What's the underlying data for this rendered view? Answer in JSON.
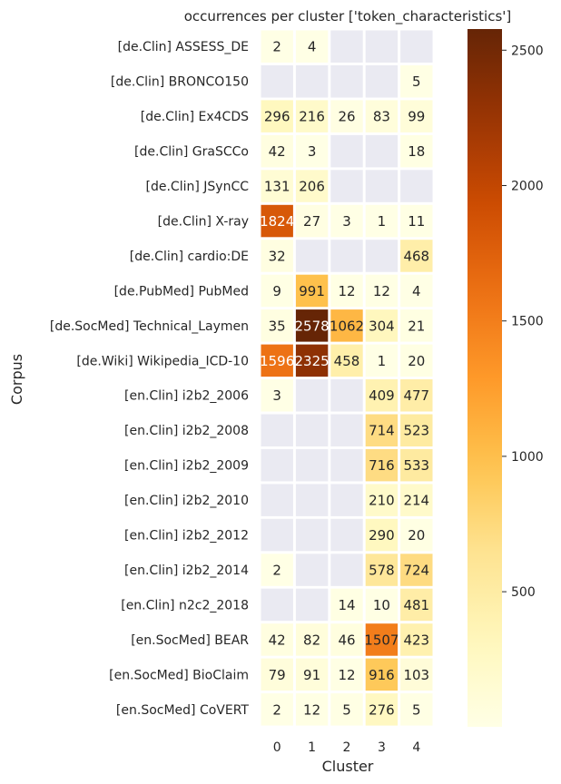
{
  "chart_data": {
    "type": "heatmap",
    "title": "occurrences per cluster ['token_characteristics']",
    "xlabel": "Cluster",
    "ylabel": "Corpus",
    "x": [
      "0",
      "1",
      "2",
      "3",
      "4"
    ],
    "y": [
      "[de.Clin] ASSESS_DE",
      "[de.Clin] BRONCO150",
      "[de.Clin] Ex4CDS",
      "[de.Clin] GraSCCo",
      "[de.Clin] JSynCC",
      "[de.Clin] X-ray",
      "[de.Clin] cardio:DE",
      "[de.PubMed] PubMed",
      "[de.SocMed] Technical_Laymen",
      "[de.Wiki] Wikipedia_ICD-10",
      "[en.Clin] i2b2_2006",
      "[en.Clin] i2b2_2008",
      "[en.Clin] i2b2_2009",
      "[en.Clin] i2b2_2010",
      "[en.Clin] i2b2_2012",
      "[en.Clin] i2b2_2014",
      "[en.Clin] n2c2_2018",
      "[en.SocMed] BEAR",
      "[en.SocMed] BioClaim",
      "[en.SocMed] CoVERT"
    ],
    "values": [
      [
        2,
        4,
        null,
        null,
        null
      ],
      [
        null,
        null,
        null,
        null,
        5
      ],
      [
        296,
        216,
        26,
        83,
        99
      ],
      [
        42,
        3,
        null,
        null,
        18
      ],
      [
        131,
        206,
        null,
        null,
        null
      ],
      [
        1824,
        27,
        3,
        1,
        11
      ],
      [
        32,
        null,
        null,
        null,
        468
      ],
      [
        9,
        991,
        12,
        12,
        4
      ],
      [
        35,
        2578,
        1062,
        304,
        21
      ],
      [
        1596,
        2325,
        458,
        1,
        20
      ],
      [
        3,
        null,
        null,
        409,
        477
      ],
      [
        null,
        null,
        null,
        714,
        523
      ],
      [
        null,
        null,
        null,
        716,
        533
      ],
      [
        null,
        null,
        null,
        210,
        214
      ],
      [
        null,
        null,
        null,
        290,
        20
      ],
      [
        2,
        null,
        null,
        578,
        724
      ],
      [
        null,
        null,
        14,
        10,
        481
      ],
      [
        42,
        82,
        46,
        1507,
        423
      ],
      [
        79,
        91,
        12,
        916,
        103
      ],
      [
        2,
        12,
        5,
        276,
        5
      ]
    ],
    "colormap": "YlOrBr",
    "missing_color": "#eaeaf2",
    "vmin": 1,
    "vmax": 2578,
    "colorbar_ticks": [
      500,
      1000,
      1500,
      2000,
      2500
    ]
  }
}
